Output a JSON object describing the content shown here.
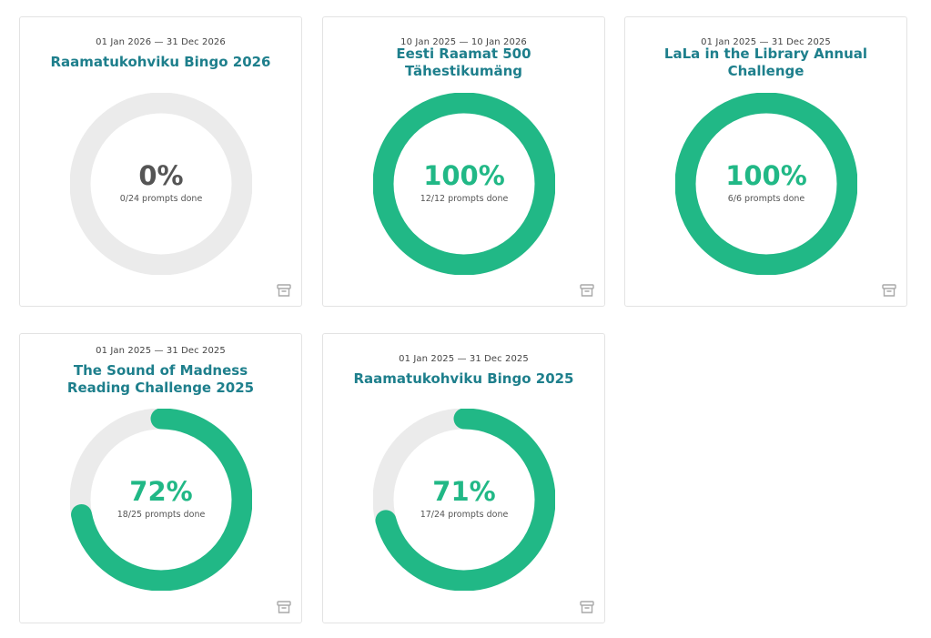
{
  "colors": {
    "progress": "#21b886",
    "track": "#ebebeb",
    "title": "#1e7f8c",
    "zero_percent": "#555555"
  },
  "challenges": [
    {
      "dates": "01 Jan 2026 — 31 Dec 2026",
      "title": "Raamatukohviku Bingo 2026",
      "percent_label": "0%",
      "progress_text": "0/24 prompts done",
      "done": 0,
      "total": 24,
      "archive_icon": "archive-icon"
    },
    {
      "dates": "10 Jan 2025 — 10 Jan 2026",
      "title": "Eesti Raamat 500 Tähestikumäng",
      "percent_label": "100%",
      "progress_text": "12/12 prompts done",
      "done": 12,
      "total": 12,
      "archive_icon": "archive-icon"
    },
    {
      "dates": "01 Jan 2025 — 31 Dec 2025",
      "title": "LaLa in the Library Annual Challenge",
      "percent_label": "100%",
      "progress_text": "6/6 prompts done",
      "done": 6,
      "total": 6,
      "archive_icon": "archive-icon"
    },
    {
      "dates": "01 Jan 2025 — 31 Dec 2025",
      "title": "The Sound of Madness Reading Challenge 2025",
      "percent_label": "72%",
      "progress_text": "18/25 prompts done",
      "done": 18,
      "total": 25,
      "archive_icon": "archive-icon"
    },
    {
      "dates": "01 Jan 2025 — 31 Dec 2025",
      "title": "Raamatukohviku Bingo 2025",
      "percent_label": "71%",
      "progress_text": "17/24 prompts done",
      "done": 17,
      "total": 24,
      "archive_icon": "archive-icon"
    }
  ]
}
